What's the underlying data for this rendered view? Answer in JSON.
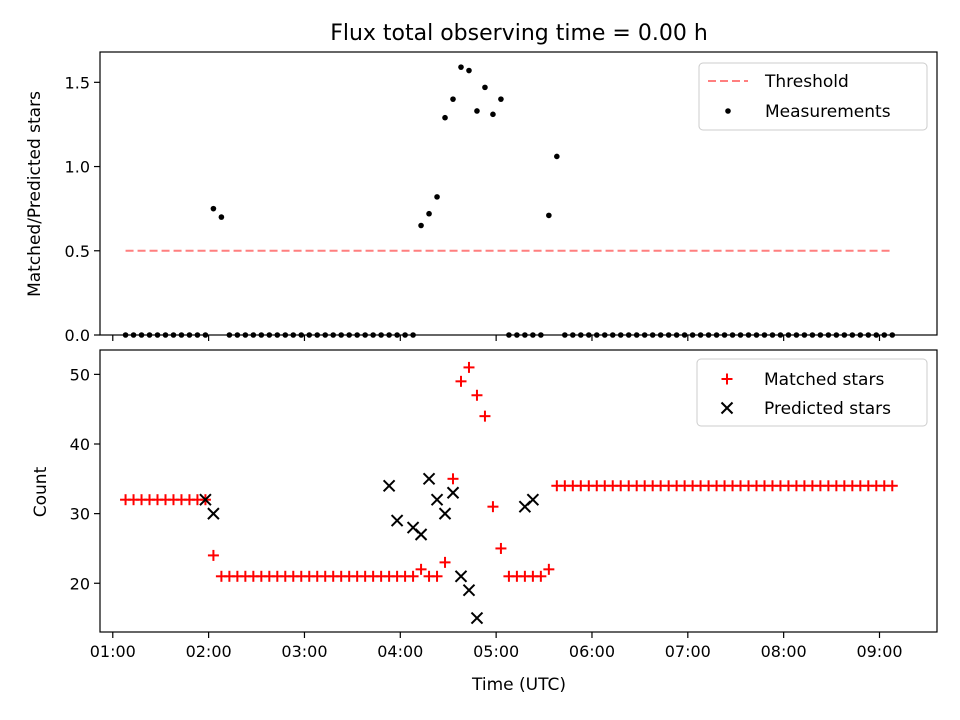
{
  "chart_data": [
    {
      "type": "scatter",
      "title": "Flux total observing time = 0.00 h",
      "ylabel": "Matched/Predicted stars",
      "xlabel": "",
      "xlim": [
        "00:52",
        "09:36"
      ],
      "ylim": [
        0,
        1.68
      ],
      "yticks": [
        0.0,
        0.5,
        1.0,
        1.5
      ],
      "ytick_labels": [
        "0.0",
        "0.5",
        "1.0",
        "1.5"
      ],
      "legend_position": "top-right",
      "threshold": {
        "name": "Threshold",
        "value": 0.5,
        "x_start": "01:08",
        "x_end": "09:08",
        "color": "#ff7f7f",
        "style": "dashed"
      },
      "series": [
        {
          "name": "Measurements",
          "color": "#000000",
          "marker": "dot",
          "x": [
            "01:08",
            "01:13",
            "01:18",
            "01:23",
            "01:28",
            "01:33",
            "01:38",
            "01:43",
            "01:48",
            "01:53",
            "01:58",
            "02:03",
            "02:08",
            "02:13",
            "02:18",
            "02:23",
            "02:28",
            "02:33",
            "02:38",
            "02:43",
            "02:48",
            "02:53",
            "02:58",
            "03:03",
            "03:08",
            "03:13",
            "03:18",
            "03:23",
            "03:28",
            "03:33",
            "03:38",
            "03:43",
            "03:48",
            "03:53",
            "03:58",
            "04:03",
            "04:08",
            "04:13",
            "04:18",
            "04:23",
            "04:28",
            "04:33",
            "04:38",
            "04:43",
            "04:48",
            "04:53",
            "04:58",
            "05:03",
            "05:08",
            "05:13",
            "05:18",
            "05:23",
            "05:28",
            "05:33",
            "05:38",
            "05:43",
            "05:48",
            "05:53",
            "05:58",
            "06:03",
            "06:08",
            "06:13",
            "06:18",
            "06:23",
            "06:28",
            "06:33",
            "06:38",
            "06:43",
            "06:48",
            "06:53",
            "06:58",
            "07:03",
            "07:08",
            "07:13",
            "07:18",
            "07:23",
            "07:28",
            "07:33",
            "07:38",
            "07:43",
            "07:48",
            "07:53",
            "07:58",
            "08:03",
            "08:08",
            "08:13",
            "08:18",
            "08:23",
            "08:28",
            "08:33",
            "08:38",
            "08:43",
            "08:48",
            "08:53",
            "08:58",
            "09:03",
            "09:08"
          ],
          "y": [
            0,
            0,
            0,
            0,
            0,
            0,
            0,
            0,
            0,
            0,
            0,
            0.75,
            0.7,
            0,
            0,
            0,
            0,
            0,
            0,
            0,
            0,
            0,
            0,
            0,
            0,
            0,
            0,
            0,
            0,
            0,
            0,
            0,
            0,
            0,
            0,
            0,
            0,
            0.65,
            0.72,
            0.82,
            1.29,
            1.4,
            1.59,
            1.57,
            1.33,
            1.47,
            1.31,
            1.4,
            0,
            0,
            0,
            0,
            0,
            0.71,
            1.06,
            0,
            0,
            0,
            0,
            0,
            0,
            0,
            0,
            0,
            0,
            0,
            0,
            0,
            0,
            0,
            0,
            0,
            0,
            0,
            0,
            0,
            0,
            0,
            0,
            0,
            0,
            0,
            0,
            0,
            0,
            0,
            0,
            0,
            0,
            0,
            0,
            0,
            0,
            0,
            0,
            0,
            0
          ]
        }
      ]
    },
    {
      "type": "scatter",
      "title": "",
      "ylabel": "Count",
      "xlabel": "Time (UTC)",
      "xlim": [
        "00:52",
        "09:36"
      ],
      "ylim": [
        13,
        53.5
      ],
      "yticks": [
        20,
        30,
        40,
        50
      ],
      "ytick_labels": [
        "20",
        "30",
        "40",
        "50"
      ],
      "xticks": [
        "01:00",
        "02:00",
        "03:00",
        "04:00",
        "05:00",
        "06:00",
        "07:00",
        "08:00",
        "09:00"
      ],
      "legend_position": "top-right",
      "series": [
        {
          "name": "Matched stars",
          "color": "#ff0000",
          "marker": "plus",
          "x": [
            "01:08",
            "01:13",
            "01:18",
            "01:23",
            "01:28",
            "01:33",
            "01:38",
            "01:43",
            "01:48",
            "01:53",
            "01:58",
            "02:03",
            "02:08",
            "02:13",
            "02:18",
            "02:23",
            "02:28",
            "02:33",
            "02:38",
            "02:43",
            "02:48",
            "02:53",
            "02:58",
            "03:03",
            "03:08",
            "03:13",
            "03:18",
            "03:23",
            "03:28",
            "03:33",
            "03:38",
            "03:43",
            "03:48",
            "03:53",
            "03:58",
            "04:03",
            "04:08",
            "04:13",
            "04:18",
            "04:23",
            "04:28",
            "04:33",
            "04:38",
            "04:43",
            "04:48",
            "04:53",
            "04:58",
            "05:03",
            "05:08",
            "05:13",
            "05:18",
            "05:23",
            "05:28",
            "05:33",
            "05:38",
            "05:43",
            "05:48",
            "05:53",
            "05:58",
            "06:03",
            "06:08",
            "06:13",
            "06:18",
            "06:23",
            "06:28",
            "06:33",
            "06:38",
            "06:43",
            "06:48",
            "06:53",
            "06:58",
            "07:03",
            "07:08",
            "07:13",
            "07:18",
            "07:23",
            "07:28",
            "07:33",
            "07:38",
            "07:43",
            "07:48",
            "07:53",
            "07:58",
            "08:03",
            "08:08",
            "08:13",
            "08:18",
            "08:23",
            "08:28",
            "08:33",
            "08:38",
            "08:43",
            "08:48",
            "08:53",
            "08:58",
            "09:03",
            "09:08"
          ],
          "y": [
            32,
            32,
            32,
            32,
            32,
            32,
            32,
            32,
            32,
            32,
            32,
            24,
            21,
            21,
            21,
            21,
            21,
            21,
            21,
            21,
            21,
            21,
            21,
            21,
            21,
            21,
            21,
            21,
            21,
            21,
            21,
            21,
            21,
            21,
            21,
            21,
            21,
            22,
            21,
            21,
            23,
            35,
            49,
            51,
            47,
            44,
            31,
            25,
            21,
            21,
            21,
            21,
            21,
            22,
            34,
            34,
            34,
            34,
            34,
            34,
            34,
            34,
            34,
            34,
            34,
            34,
            34,
            34,
            34,
            34,
            34,
            34,
            34,
            34,
            34,
            34,
            34,
            34,
            34,
            34,
            34,
            34,
            34,
            34,
            34,
            34,
            34,
            34,
            34,
            34,
            34,
            34,
            34,
            34,
            34,
            34,
            34
          ]
        },
        {
          "name": "Predicted stars",
          "color": "#000000",
          "marker": "x",
          "x": [
            "01:58",
            "02:03",
            "03:53",
            "03:58",
            "04:08",
            "04:13",
            "04:18",
            "04:23",
            "04:28",
            "04:33",
            "04:38",
            "04:43",
            "04:48",
            "05:18",
            "05:23"
          ],
          "y": [
            32,
            30,
            34,
            29,
            28,
            27,
            35,
            32,
            30,
            33,
            21,
            19,
            15,
            31,
            32
          ]
        }
      ]
    }
  ]
}
